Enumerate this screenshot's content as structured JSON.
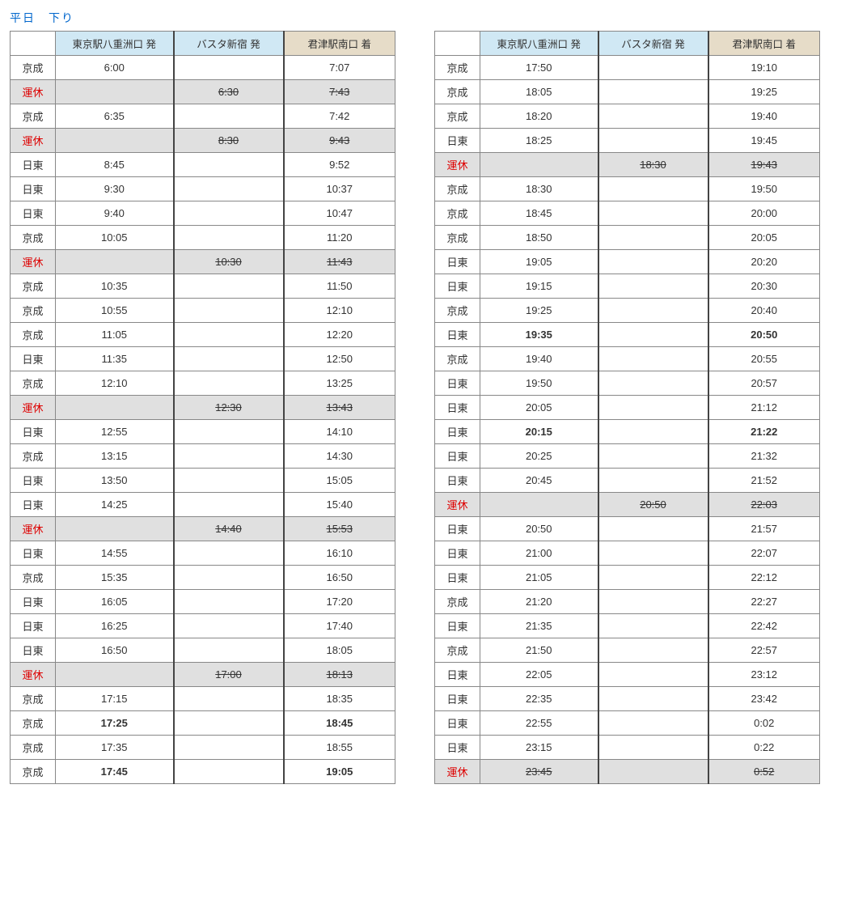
{
  "title": "平日　下り",
  "headers": {
    "blank": "",
    "col_a": "東京駅八重洲口 発",
    "col_b": "バスタ新宿 発",
    "col_c": "君津駅南口 着"
  },
  "colors": {
    "title": "#0066cc",
    "header_blue": "#d0e8f4",
    "header_tan": "#e6dcc8",
    "suspended_bg": "#e0e0e0",
    "suspended_op": "#d00",
    "border": "#888"
  },
  "left": [
    {
      "op": "京成",
      "a": "6:00",
      "b": "",
      "c": "7:07"
    },
    {
      "op": "運休",
      "a": "",
      "b": "6:30",
      "c": "7:43",
      "sus": true
    },
    {
      "op": "京成",
      "a": "6:35",
      "b": "",
      "c": "7:42"
    },
    {
      "op": "運休",
      "a": "",
      "b": "8:30",
      "c": "9:43",
      "sus": true
    },
    {
      "op": "日東",
      "a": "8:45",
      "b": "",
      "c": "9:52"
    },
    {
      "op": "日東",
      "a": "9:30",
      "b": "",
      "c": "10:37"
    },
    {
      "op": "日東",
      "a": "9:40",
      "b": "",
      "c": "10:47"
    },
    {
      "op": "京成",
      "a": "10:05",
      "b": "",
      "c": "11:20"
    },
    {
      "op": "運休",
      "a": "",
      "b": "10:30",
      "c": "11:43",
      "sus": true
    },
    {
      "op": "京成",
      "a": "10:35",
      "b": "",
      "c": "11:50"
    },
    {
      "op": "京成",
      "a": "10:55",
      "b": "",
      "c": "12:10"
    },
    {
      "op": "京成",
      "a": "11:05",
      "b": "",
      "c": "12:20"
    },
    {
      "op": "日東",
      "a": "11:35",
      "b": "",
      "c": "12:50"
    },
    {
      "op": "京成",
      "a": "12:10",
      "b": "",
      "c": "13:25"
    },
    {
      "op": "運休",
      "a": "",
      "b": "12:30",
      "c": "13:43",
      "sus": true
    },
    {
      "op": "日東",
      "a": "12:55",
      "b": "",
      "c": "14:10"
    },
    {
      "op": "京成",
      "a": "13:15",
      "b": "",
      "c": "14:30"
    },
    {
      "op": "日東",
      "a": "13:50",
      "b": "",
      "c": "15:05"
    },
    {
      "op": "日東",
      "a": "14:25",
      "b": "",
      "c": "15:40"
    },
    {
      "op": "運休",
      "a": "",
      "b": "14:40",
      "c": "15:53",
      "sus": true
    },
    {
      "op": "日東",
      "a": "14:55",
      "b": "",
      "c": "16:10"
    },
    {
      "op": "京成",
      "a": "15:35",
      "b": "",
      "c": "16:50"
    },
    {
      "op": "日東",
      "a": "16:05",
      "b": "",
      "c": "17:20"
    },
    {
      "op": "日東",
      "a": "16:25",
      "b": "",
      "c": "17:40"
    },
    {
      "op": "日東",
      "a": "16:50",
      "b": "",
      "c": "18:05"
    },
    {
      "op": "運休",
      "a": "",
      "b": "17:00",
      "c": "18:13",
      "sus": true
    },
    {
      "op": "京成",
      "a": "17:15",
      "b": "",
      "c": "18:35"
    },
    {
      "op": "京成",
      "a": "17:25",
      "b": "",
      "c": "18:45",
      "bold": true
    },
    {
      "op": "京成",
      "a": "17:35",
      "b": "",
      "c": "18:55"
    },
    {
      "op": "京成",
      "a": "17:45",
      "b": "",
      "c": "19:05",
      "bold": true
    }
  ],
  "right": [
    {
      "op": "京成",
      "a": "17:50",
      "b": "",
      "c": "19:10"
    },
    {
      "op": "京成",
      "a": "18:05",
      "b": "",
      "c": "19:25"
    },
    {
      "op": "京成",
      "a": "18:20",
      "b": "",
      "c": "19:40"
    },
    {
      "op": "日東",
      "a": "18:25",
      "b": "",
      "c": "19:45"
    },
    {
      "op": "運休",
      "a": "",
      "b": "18:30",
      "c": "19:43",
      "sus": true
    },
    {
      "op": "京成",
      "a": "18:30",
      "b": "",
      "c": "19:50"
    },
    {
      "op": "京成",
      "a": "18:45",
      "b": "",
      "c": "20:00"
    },
    {
      "op": "京成",
      "a": "18:50",
      "b": "",
      "c": "20:05"
    },
    {
      "op": "日東",
      "a": "19:05",
      "b": "",
      "c": "20:20"
    },
    {
      "op": "日東",
      "a": "19:15",
      "b": "",
      "c": "20:30"
    },
    {
      "op": "京成",
      "a": "19:25",
      "b": "",
      "c": "20:40"
    },
    {
      "op": "日東",
      "a": "19:35",
      "b": "",
      "c": "20:50",
      "bold": true
    },
    {
      "op": "京成",
      "a": "19:40",
      "b": "",
      "c": "20:55"
    },
    {
      "op": "日東",
      "a": "19:50",
      "b": "",
      "c": "20:57"
    },
    {
      "op": "日東",
      "a": "20:05",
      "b": "",
      "c": "21:12"
    },
    {
      "op": "日東",
      "a": "20:15",
      "b": "",
      "c": "21:22",
      "bold": true
    },
    {
      "op": "日東",
      "a": "20:25",
      "b": "",
      "c": "21:32"
    },
    {
      "op": "日東",
      "a": "20:45",
      "b": "",
      "c": "21:52"
    },
    {
      "op": "運休",
      "a": "",
      "b": "20:50",
      "c": "22:03",
      "sus": true
    },
    {
      "op": "日東",
      "a": "20:50",
      "b": "",
      "c": "21:57"
    },
    {
      "op": "日東",
      "a": "21:00",
      "b": "",
      "c": "22:07"
    },
    {
      "op": "日東",
      "a": "21:05",
      "b": "",
      "c": "22:12"
    },
    {
      "op": "京成",
      "a": "21:20",
      "b": "",
      "c": "22:27"
    },
    {
      "op": "日東",
      "a": "21:35",
      "b": "",
      "c": "22:42"
    },
    {
      "op": "京成",
      "a": "21:50",
      "b": "",
      "c": "22:57"
    },
    {
      "op": "日東",
      "a": "22:05",
      "b": "",
      "c": "23:12"
    },
    {
      "op": "日東",
      "a": "22:35",
      "b": "",
      "c": "23:42"
    },
    {
      "op": "日東",
      "a": "22:55",
      "b": "",
      "c": "0:02"
    },
    {
      "op": "日東",
      "a": "23:15",
      "b": "",
      "c": "0:22"
    },
    {
      "op": "運休",
      "a": "23:45",
      "b": "",
      "c": "0:52",
      "sus": true
    }
  ]
}
